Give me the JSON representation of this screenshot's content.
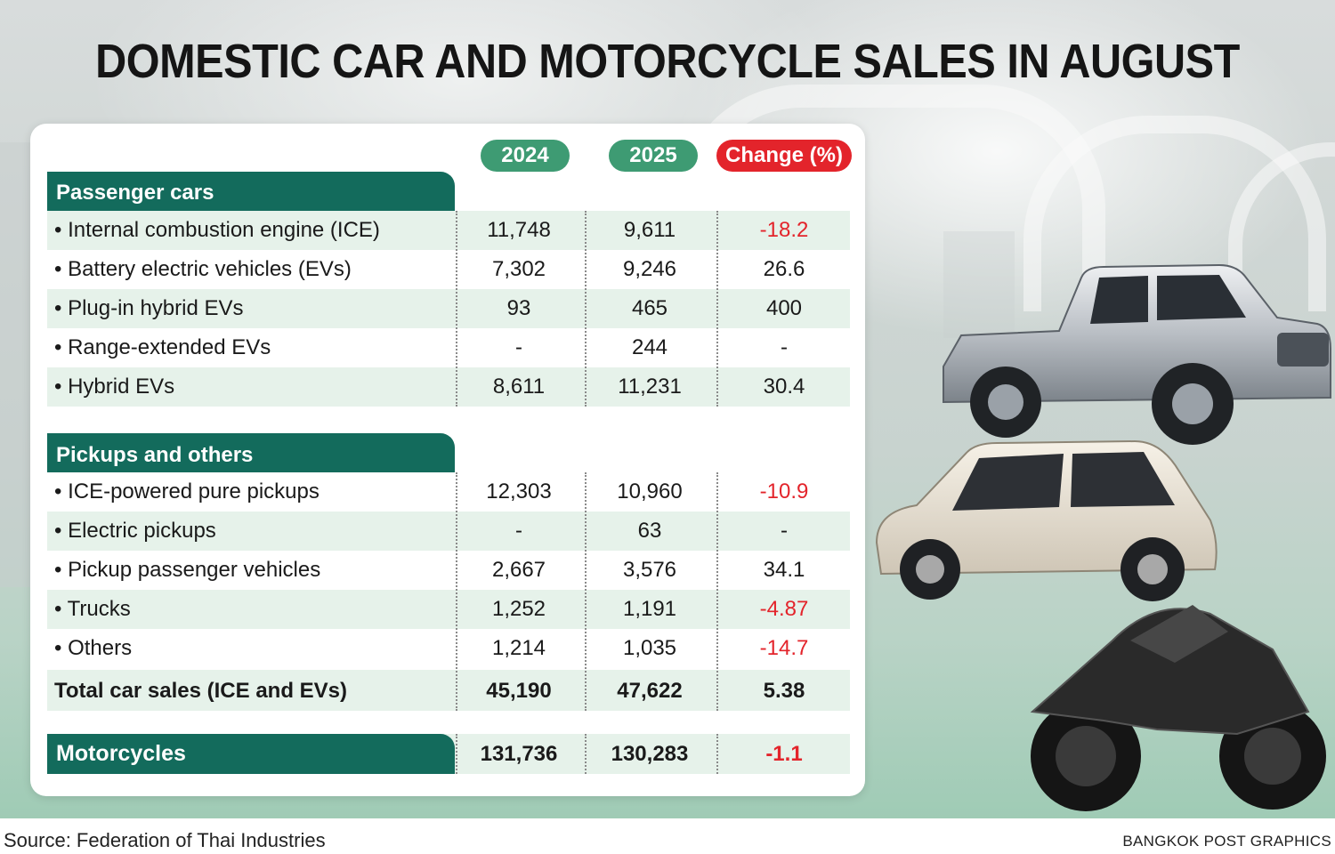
{
  "title": "DOMESTIC CAR AND MOTORCYCLE SALES IN AUGUST",
  "columns": {
    "y2024": "2024",
    "y2025": "2025",
    "change": "Change (%)"
  },
  "sections": {
    "passenger": {
      "heading": "Passenger cars",
      "rows": [
        {
          "label": "• Internal combustion engine (ICE)",
          "v2024": "11,748",
          "v2025": "9,611",
          "change": "-18.2"
        },
        {
          "label": "• Battery electric vehicles (EVs)",
          "v2024": "7,302",
          "v2025": "9,246",
          "change": "26.6"
        },
        {
          "label": "• Plug-in hybrid EVs",
          "v2024": "93",
          "v2025": "465",
          "change": "400"
        },
        {
          "label": "• Range-extended EVs",
          "v2024": "-",
          "v2025": "244",
          "change": "-"
        },
        {
          "label": "• Hybrid EVs",
          "v2024": "8,611",
          "v2025": "11,231",
          "change": "30.4"
        }
      ]
    },
    "pickups": {
      "heading": "Pickups and others",
      "rows": [
        {
          "label": "• ICE-powered pure pickups",
          "v2024": "12,303",
          "v2025": "10,960",
          "change": "-10.9"
        },
        {
          "label": "• Electric pickups",
          "v2024": "-",
          "v2025": "63",
          "change": "-"
        },
        {
          "label": "• Pickup passenger vehicles",
          "v2024": "2,667",
          "v2025": "3,576",
          "change": "34.1"
        },
        {
          "label": "• Trucks",
          "v2024": "1,252",
          "v2025": "1,191",
          "change": "-4.87"
        },
        {
          "label": "• Others",
          "v2024": "1,214",
          "v2025": "1,035",
          "change": "-14.7"
        }
      ]
    }
  },
  "total": {
    "label": "Total car sales (ICE and EVs)",
    "v2024": "45,190",
    "v2025": "47,622",
    "change": "5.38"
  },
  "motorcycles": {
    "label": "Motorcycles",
    "v2024": "131,736",
    "v2025": "130,283",
    "change": "-1.1"
  },
  "source": "Source: Federation of Thai Industries",
  "credit": "BANGKOK POST GRAPHICS",
  "colors": {
    "section_header": "#136b5c",
    "pill_green": "#3e9b73",
    "pill_red": "#e3242b",
    "negative_value": "#e3242b",
    "row_shade": "#e6f2ea"
  }
}
